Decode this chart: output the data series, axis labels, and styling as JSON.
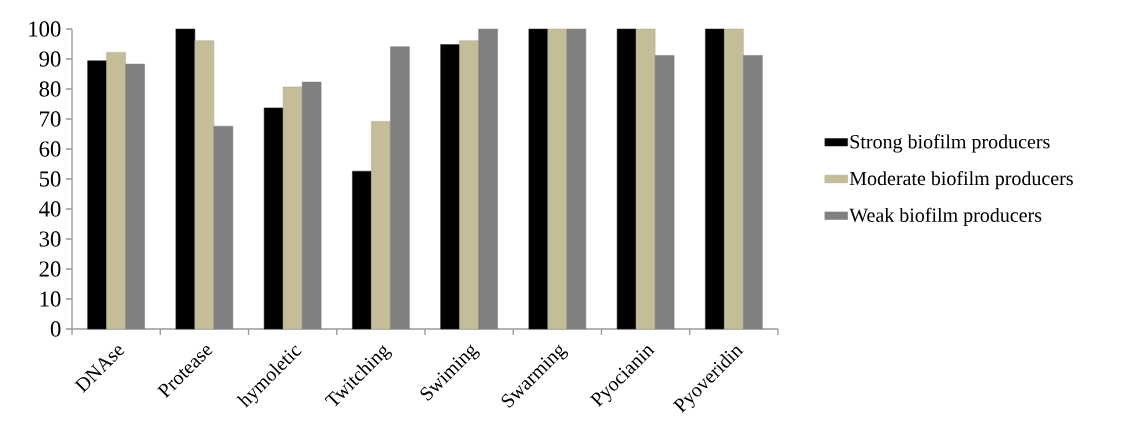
{
  "chart_data": {
    "type": "bar",
    "categories": [
      "DNAse",
      "Protease",
      "hymoletic",
      "Twitching",
      "Swiming",
      "Swarming",
      "Pyocianin",
      "Pyoveridin"
    ],
    "series": [
      {
        "name": "Strong biofilm producers",
        "color": "#000000",
        "values": [
          89.4,
          100,
          73.7,
          52.6,
          94.8,
          100,
          100,
          100
        ]
      },
      {
        "name": "Moderate biofilm producers",
        "color": "#c4bd97",
        "values": [
          92.2,
          96.1,
          80.7,
          69.2,
          96.1,
          100,
          100,
          100
        ]
      },
      {
        "name": "Weak biofilm producers",
        "color": "#808080",
        "values": [
          88.3,
          67.6,
          82.3,
          94.1,
          100,
          100,
          91.2,
          91.2
        ]
      }
    ],
    "ylim": [
      0,
      100
    ],
    "yticks": [
      0,
      10,
      20,
      30,
      40,
      50,
      60,
      70,
      80,
      90,
      100
    ],
    "grid": false,
    "legend": "right"
  }
}
